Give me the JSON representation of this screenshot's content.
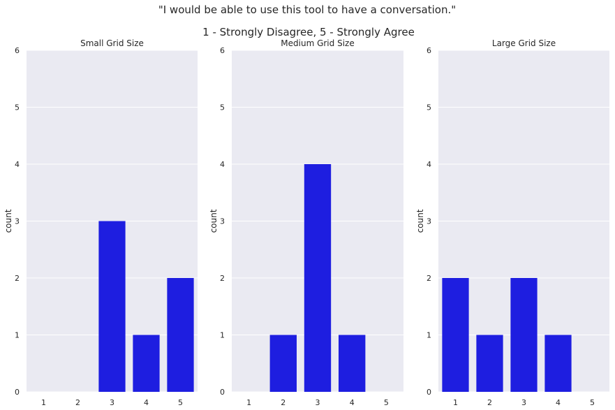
{
  "figure": {
    "title_line1": "\"I would be able to use this tool to have a conversation.\"",
    "title_line2": "1 - Strongly Disagree, 5 - Strongly Agree"
  },
  "colors": {
    "bar": "#1e1ee0",
    "plot_bg": "#eaeaf2",
    "grid": "#ffffff",
    "text": "#262626"
  },
  "chart_data": [
    {
      "type": "bar",
      "title": "Small Grid Size",
      "categories": [
        "1",
        "2",
        "3",
        "4",
        "5"
      ],
      "values": [
        0,
        0,
        3,
        1,
        2
      ],
      "xlabel": "",
      "ylabel": "count",
      "ylim": [
        0,
        6
      ],
      "yticks": [
        "0",
        "1",
        "2",
        "3",
        "4",
        "5",
        "6"
      ],
      "grid": "horizontal"
    },
    {
      "type": "bar",
      "title": "Medium Grid Size",
      "categories": [
        "1",
        "2",
        "3",
        "4",
        "5"
      ],
      "values": [
        0,
        1,
        4,
        1,
        0
      ],
      "xlabel": "",
      "ylabel": "count",
      "ylim": [
        0,
        6
      ],
      "yticks": [
        "0",
        "1",
        "2",
        "3",
        "4",
        "5",
        "6"
      ],
      "grid": "horizontal"
    },
    {
      "type": "bar",
      "title": "Large Grid Size",
      "categories": [
        "1",
        "2",
        "3",
        "4",
        "5"
      ],
      "values": [
        2,
        1,
        2,
        1,
        0
      ],
      "xlabel": "",
      "ylabel": "count",
      "ylim": [
        0,
        6
      ],
      "yticks": [
        "0",
        "1",
        "2",
        "3",
        "4",
        "5",
        "6"
      ],
      "grid": "horizontal"
    }
  ]
}
